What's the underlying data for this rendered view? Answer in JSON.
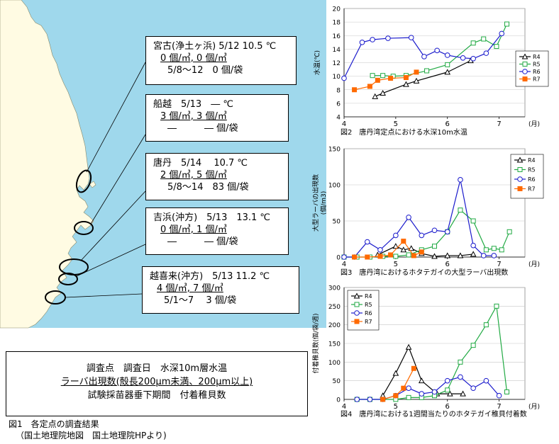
{
  "map": {
    "sea_color": "#9fd8ec",
    "land_color": "#fffbe3",
    "boxes": [
      {
        "id": "miyako",
        "title": "宮古(浄土ヶ浜) 5/12 10.5 ℃",
        "line2": "0 個/㎥, 0 個/㎥",
        "line3": "5/8～12　0 個/袋"
      },
      {
        "id": "funakoshi",
        "title": "船越　5/13　― ℃",
        "line2": "3 個/㎥, 3 個/㎥",
        "line3": "―　　　― 個/袋"
      },
      {
        "id": "karatan",
        "title": "唐丹　5/14　 10.7 ℃",
        "line2": "2 個/㎥, 5 個/㎥",
        "line3": "5/8～14　83 個/袋"
      },
      {
        "id": "yoshihama",
        "title": "吉浜(沖方)　5/13　13.1 ℃",
        "line2": "0 個/㎥, 1 個/㎥",
        "line3": "―　　　― 個/袋"
      },
      {
        "id": "okirai",
        "title": "越喜来(沖方)　5/13 11.2 ℃",
        "line2": "4 個/㎥, 7 個/㎥",
        "line3": "5/1～7　 3 個/袋"
      }
    ]
  },
  "legend_box": {
    "line1": "調査点　調査日　水深10m層水温",
    "line2": "ラーバ出現数(殻長200μm未満、200μm以上)",
    "line3": "試験採苗器垂下期間　付着稚貝数"
  },
  "fig1_caption": {
    "line1": "図1　各定点の調査結果",
    "line2": "（国土地理院地図　国土地理院HPより)"
  },
  "series_styles": [
    {
      "name": "R4",
      "color": "#000000",
      "marker": "triangle"
    },
    {
      "name": "R5",
      "color": "#22aa44",
      "marker": "square"
    },
    {
      "name": "R6",
      "color": "#1a1acc",
      "marker": "circle"
    },
    {
      "name": "R7",
      "color": "#ff6a00",
      "marker": "square-filled"
    }
  ],
  "chart_data": [
    {
      "type": "line",
      "caption": "図2　唐丹湾定点における水深10m水温",
      "ylabel": "水温(℃)",
      "xunit": "(月)",
      "xlim": [
        4,
        7.5
      ],
      "ylim": [
        4,
        20
      ],
      "yticks": [
        4,
        6,
        8,
        10,
        12,
        14,
        16,
        18,
        20
      ],
      "xticks": [
        4,
        5,
        6,
        7
      ],
      "series": [
        {
          "name": "R4",
          "x": [
            4.6,
            4.75,
            5.2,
            5.4,
            6.0,
            6.45
          ],
          "y": [
            7.0,
            7.5,
            8.8,
            9.3,
            10.6,
            12.3
          ]
        },
        {
          "name": "R5",
          "x": [
            4.55,
            4.75,
            4.95,
            5.2,
            5.6,
            6.0,
            6.5,
            6.7,
            6.95,
            7.15
          ],
          "y": [
            10.1,
            10.1,
            10.0,
            10.1,
            10.8,
            11.7,
            14.9,
            15.5,
            14.4,
            17.7
          ]
        },
        {
          "name": "R6",
          "x": [
            4.0,
            4.35,
            4.55,
            4.85,
            5.3,
            5.55,
            5.8,
            6.0,
            6.3,
            6.5,
            6.75,
            7.05
          ],
          "y": [
            9.7,
            15.0,
            15.4,
            15.6,
            15.7,
            12.9,
            13.8,
            13.1,
            12.7,
            12.6,
            13.4,
            16.3
          ]
        },
        {
          "name": "R7",
          "x": [
            4.2,
            4.5,
            4.65,
            4.9,
            5.2,
            5.4
          ],
          "y": [
            8.0,
            8.5,
            9.4,
            9.7,
            9.8,
            10.6
          ]
        }
      ]
    },
    {
      "type": "line",
      "caption": "図3　唐丹湾におけるホタテガイの大型ラーバ出現数",
      "ylabel": "大型ラーバの出現数\n(個/m3)",
      "xunit": "(月)",
      "xlim": [
        4,
        7.5
      ],
      "ylim": [
        0,
        150
      ],
      "yticks": [
        0,
        50,
        100,
        150
      ],
      "xticks": [
        4,
        5,
        6,
        7
      ],
      "series": [
        {
          "name": "R4",
          "x": [
            4.65,
            5.0,
            5.15,
            5.3,
            5.5,
            5.75,
            6.0,
            6.25,
            6.5
          ],
          "y": [
            3,
            15,
            10,
            12,
            5,
            1,
            2,
            2,
            4
          ]
        },
        {
          "name": "R5",
          "x": [
            4.0,
            4.25,
            4.5,
            4.75,
            5.0,
            5.25,
            5.5,
            5.75,
            6.0,
            6.25,
            6.5,
            6.75,
            6.9,
            7.05,
            7.2
          ],
          "y": [
            0,
            0,
            0,
            1,
            1,
            3,
            10,
            15,
            35,
            65,
            50,
            10,
            12,
            10,
            35
          ]
        },
        {
          "name": "R6",
          "x": [
            4.0,
            4.2,
            4.45,
            4.7,
            5.0,
            5.25,
            5.5,
            5.75,
            6.0,
            6.25,
            6.5,
            6.7,
            6.9
          ],
          "y": [
            0,
            0,
            21,
            10,
            30,
            55,
            30,
            37,
            35,
            107,
            16,
            2,
            2
          ]
        },
        {
          "name": "R7",
          "x": [
            4.2,
            4.45,
            4.7,
            4.9,
            5.15,
            5.35,
            5.5
          ],
          "y": [
            0,
            0,
            1,
            3,
            22,
            2,
            7
          ]
        }
      ]
    },
    {
      "type": "line",
      "caption": "図4　唐丹湾における1週間当たりのホタテガイ稚貝付着数",
      "ylabel": "付着稚貝数(個/袋/週)",
      "xunit": "(月)",
      "xlim": [
        4,
        7.5
      ],
      "ylim": [
        0,
        300
      ],
      "yticks": [
        0,
        50,
        100,
        150,
        200,
        250,
        300
      ],
      "xticks": [
        4,
        5,
        6,
        7
      ],
      "series": [
        {
          "name": "R4",
          "x": [
            4.75,
            5.0,
            5.25,
            5.5,
            5.8,
            6.05,
            6.3
          ],
          "y": [
            10,
            70,
            140,
            50,
            15,
            15,
            15
          ]
        },
        {
          "name": "R5",
          "x": [
            4.25,
            4.5,
            4.75,
            5.0,
            5.25,
            5.5,
            5.75,
            6.0,
            6.25,
            6.5,
            6.75,
            6.95,
            7.15
          ],
          "y": [
            0,
            0,
            0,
            0,
            5,
            5,
            10,
            25,
            100,
            145,
            200,
            250,
            20
          ]
        },
        {
          "name": "R6",
          "x": [
            4.25,
            4.5,
            4.75,
            5.0,
            5.25,
            5.5,
            5.75,
            6.0,
            6.25,
            6.5,
            6.75,
            7.0
          ],
          "y": [
            0,
            0,
            0,
            10,
            30,
            15,
            20,
            50,
            60,
            30,
            50,
            10
          ]
        },
        {
          "name": "R7",
          "x": [
            4.75,
            5.0,
            5.15,
            5.35
          ],
          "y": [
            0,
            10,
            30,
            83
          ]
        }
      ]
    }
  ]
}
